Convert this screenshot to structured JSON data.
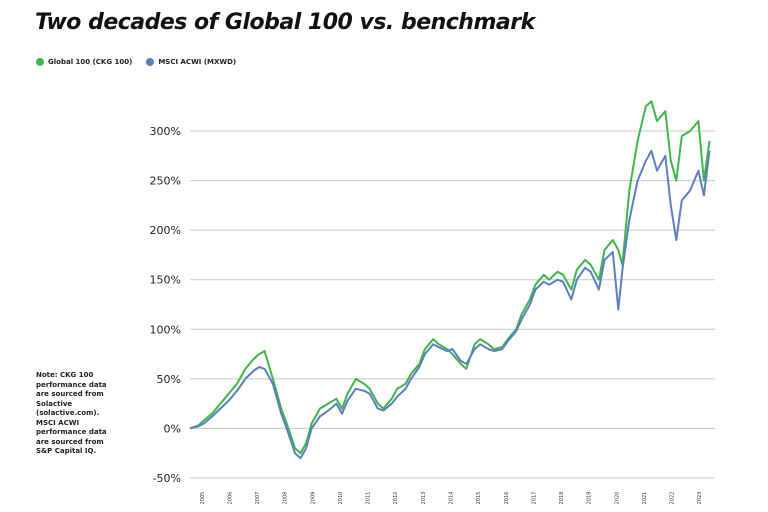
{
  "title": "Two decades of Global 100 vs. benchmark",
  "legend": [
    {
      "label": "Global 100 (CKG 100)",
      "color": "#3fb54a"
    },
    {
      "label": "MSCI ACWI (MXWD)",
      "color": "#5b7fc0"
    }
  ],
  "note": "Note: CKG 100 performance data are sourced from Solactive (solactive.com). MSCI ACWI performance data are sourced from S&P Capital IQ.",
  "chart_data": {
    "type": "line",
    "ylim": [
      -50,
      300
    ],
    "yticks": [
      300,
      250,
      200,
      150,
      100,
      50,
      0,
      -50
    ],
    "ytick_labels": [
      "300%",
      "250%",
      "200%",
      "150%",
      "100%",
      "50%",
      "0%",
      "-50%"
    ],
    "xlim": [
      2004.5,
      2023.5
    ],
    "xticks": [
      2005,
      2006,
      2007,
      2008,
      2009,
      2010,
      2011,
      2012,
      2013,
      2014,
      2015,
      2016,
      2017,
      2018,
      2019,
      2020,
      2021,
      2022,
      2023
    ],
    "xtick_labels": [
      "2005",
      "2006",
      "2007",
      "2008",
      "2009",
      "2010",
      "2011",
      "2012",
      "2013",
      "2014",
      "2015",
      "2016",
      "2017",
      "2018",
      "2019",
      "2020",
      "2021",
      "2022",
      "2023"
    ],
    "grid": true,
    "legend_position": "top-left",
    "series": [
      {
        "name": "Global 100 (CKG 100)",
        "color": "#3fb54a",
        "x": [
          2004.5,
          2004.8,
          2005.0,
          2005.3,
          2005.6,
          2005.9,
          2006.2,
          2006.5,
          2006.8,
          2007.0,
          2007.2,
          2007.5,
          2007.8,
          2008.0,
          2008.3,
          2008.5,
          2008.7,
          2008.9,
          2009.2,
          2009.5,
          2009.8,
          2010.0,
          2010.2,
          2010.5,
          2010.8,
          2011.0,
          2011.3,
          2011.5,
          2011.8,
          2012.0,
          2012.3,
          2012.5,
          2012.8,
          2013.0,
          2013.3,
          2013.5,
          2013.8,
          2014.0,
          2014.3,
          2014.5,
          2014.8,
          2015.0,
          2015.3,
          2015.5,
          2015.8,
          2016.0,
          2016.3,
          2016.5,
          2016.8,
          2017.0,
          2017.3,
          2017.5,
          2017.8,
          2018.0,
          2018.3,
          2018.5,
          2018.8,
          2019.0,
          2019.3,
          2019.5,
          2019.8,
          2020.0,
          2020.15,
          2020.4,
          2020.7,
          2021.0,
          2021.2,
          2021.4,
          2021.7,
          2021.9,
          2022.1,
          2022.3,
          2022.6,
          2022.9,
          2023.1,
          2023.3
        ],
        "y": [
          0,
          3,
          8,
          15,
          25,
          35,
          45,
          60,
          70,
          75,
          78,
          50,
          20,
          5,
          -20,
          -25,
          -15,
          5,
          20,
          25,
          30,
          20,
          35,
          50,
          45,
          40,
          25,
          20,
          30,
          40,
          45,
          55,
          65,
          80,
          90,
          85,
          80,
          75,
          65,
          60,
          85,
          90,
          85,
          80,
          82,
          90,
          100,
          115,
          130,
          145,
          155,
          150,
          158,
          155,
          140,
          160,
          170,
          165,
          150,
          180,
          190,
          180,
          165,
          240,
          290,
          325,
          330,
          310,
          320,
          270,
          250,
          295,
          300,
          310,
          250,
          290
        ]
      },
      {
        "name": "MSCI ACWI (MXWD)",
        "color": "#5b7fc0",
        "x": [
          2004.5,
          2004.8,
          2005.0,
          2005.3,
          2005.6,
          2005.9,
          2006.2,
          2006.5,
          2006.8,
          2007.0,
          2007.2,
          2007.5,
          2007.8,
          2008.0,
          2008.3,
          2008.5,
          2008.7,
          2008.9,
          2009.2,
          2009.5,
          2009.8,
          2010.0,
          2010.2,
          2010.5,
          2010.8,
          2011.0,
          2011.3,
          2011.5,
          2011.8,
          2012.0,
          2012.3,
          2012.5,
          2012.8,
          2013.0,
          2013.3,
          2013.5,
          2013.8,
          2014.0,
          2014.3,
          2014.5,
          2014.8,
          2015.0,
          2015.3,
          2015.5,
          2015.8,
          2016.0,
          2016.3,
          2016.5,
          2016.8,
          2017.0,
          2017.3,
          2017.5,
          2017.8,
          2018.0,
          2018.3,
          2018.5,
          2018.8,
          2019.0,
          2019.3,
          2019.5,
          2019.8,
          2020.0,
          2020.15,
          2020.4,
          2020.7,
          2021.0,
          2021.2,
          2021.4,
          2021.7,
          2021.9,
          2022.1,
          2022.3,
          2022.6,
          2022.9,
          2023.1,
          2023.3
        ],
        "y": [
          0,
          2,
          5,
          12,
          20,
          28,
          38,
          50,
          58,
          62,
          60,
          45,
          15,
          0,
          -25,
          -30,
          -20,
          0,
          12,
          18,
          25,
          15,
          28,
          40,
          38,
          35,
          20,
          18,
          25,
          32,
          40,
          50,
          62,
          75,
          85,
          82,
          78,
          80,
          68,
          65,
          80,
          85,
          80,
          78,
          80,
          88,
          98,
          110,
          125,
          140,
          148,
          145,
          150,
          148,
          130,
          150,
          162,
          158,
          140,
          170,
          178,
          120,
          160,
          210,
          250,
          270,
          280,
          260,
          275,
          225,
          190,
          230,
          240,
          260,
          235,
          280
        ]
      }
    ]
  }
}
